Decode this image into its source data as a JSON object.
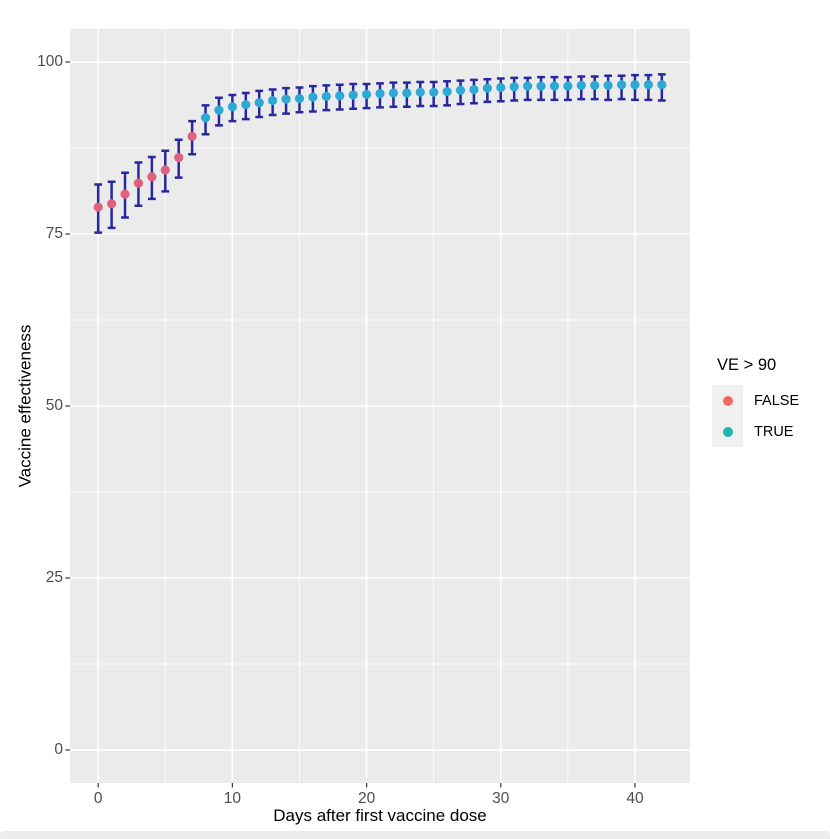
{
  "figure": {
    "background": "#FFFFFF",
    "panel_color": "#EBEBEB",
    "grid_color": "#FFFFFF",
    "tick_mark_color": "#333333",
    "tick_label_color": "#4D4D4D"
  },
  "legend": {
    "title": "VE > 90",
    "key_background": "#F0F0EF",
    "items": [
      {
        "label": "FALSE",
        "color": "#EE6A63"
      },
      {
        "label": "TRUE",
        "color": "#1CB8AE"
      }
    ]
  },
  "page": {
    "bottom_strip_color": "#ECECEA"
  },
  "chart_data": {
    "type": "scatter",
    "title": "",
    "xlabel": "Days after first vaccine dose",
    "ylabel": "Vaccine effectiveness",
    "x_ticks": [
      0,
      10,
      20,
      30,
      40
    ],
    "y_ticks": [
      0,
      25,
      50,
      75,
      100
    ],
    "xlim": [
      -2.1,
      44.1
    ],
    "ylim": [
      -4.8,
      104.8
    ],
    "grid": true,
    "legend_position": "right",
    "color_rule": "VE > 90 : FALSE=pink, TRUE=teal",
    "series_colors": {
      "FALSE": "#E0617E",
      "TRUE": "#2EA9D5"
    },
    "errorbar_color": "#28289E",
    "points": [
      {
        "day": 0,
        "ve": 78.9,
        "lo": 75.2,
        "hi": 82.2,
        "ve_gt_90": false
      },
      {
        "day": 1,
        "ve": 79.4,
        "lo": 75.9,
        "hi": 82.6,
        "ve_gt_90": false
      },
      {
        "day": 2,
        "ve": 80.8,
        "lo": 77.4,
        "hi": 83.9,
        "ve_gt_90": false
      },
      {
        "day": 3,
        "ve": 82.4,
        "lo": 79.1,
        "hi": 85.4,
        "ve_gt_90": false
      },
      {
        "day": 4,
        "ve": 83.3,
        "lo": 80.1,
        "hi": 86.2,
        "ve_gt_90": false
      },
      {
        "day": 5,
        "ve": 84.3,
        "lo": 81.2,
        "hi": 87.1,
        "ve_gt_90": false
      },
      {
        "day": 6,
        "ve": 86.1,
        "lo": 83.2,
        "hi": 88.7,
        "ve_gt_90": false
      },
      {
        "day": 7,
        "ve": 89.2,
        "lo": 86.6,
        "hi": 91.4,
        "ve_gt_90": false
      },
      {
        "day": 8,
        "ve": 91.9,
        "lo": 89.5,
        "hi": 93.7,
        "ve_gt_90": true
      },
      {
        "day": 9,
        "ve": 93.0,
        "lo": 90.8,
        "hi": 94.8,
        "ve_gt_90": true
      },
      {
        "day": 10,
        "ve": 93.5,
        "lo": 91.4,
        "hi": 95.2,
        "ve_gt_90": true
      },
      {
        "day": 11,
        "ve": 93.8,
        "lo": 91.7,
        "hi": 95.5,
        "ve_gt_90": true
      },
      {
        "day": 12,
        "ve": 94.1,
        "lo": 92.0,
        "hi": 95.8,
        "ve_gt_90": true
      },
      {
        "day": 13,
        "ve": 94.4,
        "lo": 92.3,
        "hi": 96.0,
        "ve_gt_90": true
      },
      {
        "day": 14,
        "ve": 94.6,
        "lo": 92.5,
        "hi": 96.2,
        "ve_gt_90": true
      },
      {
        "day": 15,
        "ve": 94.7,
        "lo": 92.7,
        "hi": 96.3,
        "ve_gt_90": true
      },
      {
        "day": 16,
        "ve": 94.9,
        "lo": 92.8,
        "hi": 96.5,
        "ve_gt_90": true
      },
      {
        "day": 17,
        "ve": 95.0,
        "lo": 93.0,
        "hi": 96.6,
        "ve_gt_90": true
      },
      {
        "day": 18,
        "ve": 95.1,
        "lo": 93.1,
        "hi": 96.7,
        "ve_gt_90": true
      },
      {
        "day": 19,
        "ve": 95.2,
        "lo": 93.2,
        "hi": 96.8,
        "ve_gt_90": true
      },
      {
        "day": 20,
        "ve": 95.3,
        "lo": 93.3,
        "hi": 96.8,
        "ve_gt_90": true
      },
      {
        "day": 21,
        "ve": 95.4,
        "lo": 93.4,
        "hi": 96.9,
        "ve_gt_90": true
      },
      {
        "day": 22,
        "ve": 95.5,
        "lo": 93.5,
        "hi": 97.0,
        "ve_gt_90": true
      },
      {
        "day": 23,
        "ve": 95.5,
        "lo": 93.5,
        "hi": 97.0,
        "ve_gt_90": true
      },
      {
        "day": 24,
        "ve": 95.6,
        "lo": 93.6,
        "hi": 97.1,
        "ve_gt_90": true
      },
      {
        "day": 25,
        "ve": 95.6,
        "lo": 93.6,
        "hi": 97.1,
        "ve_gt_90": true
      },
      {
        "day": 26,
        "ve": 95.7,
        "lo": 93.7,
        "hi": 97.2,
        "ve_gt_90": true
      },
      {
        "day": 27,
        "ve": 95.9,
        "lo": 93.9,
        "hi": 97.3,
        "ve_gt_90": true
      },
      {
        "day": 28,
        "ve": 96.0,
        "lo": 94.0,
        "hi": 97.4,
        "ve_gt_90": true
      },
      {
        "day": 29,
        "ve": 96.2,
        "lo": 94.2,
        "hi": 97.5,
        "ve_gt_90": true
      },
      {
        "day": 30,
        "ve": 96.3,
        "lo": 94.3,
        "hi": 97.6,
        "ve_gt_90": true
      },
      {
        "day": 31,
        "ve": 96.4,
        "lo": 94.4,
        "hi": 97.7,
        "ve_gt_90": true
      },
      {
        "day": 32,
        "ve": 96.5,
        "lo": 94.5,
        "hi": 97.7,
        "ve_gt_90": true
      },
      {
        "day": 33,
        "ve": 96.5,
        "lo": 94.5,
        "hi": 97.8,
        "ve_gt_90": true
      },
      {
        "day": 34,
        "ve": 96.5,
        "lo": 94.5,
        "hi": 97.8,
        "ve_gt_90": true
      },
      {
        "day": 35,
        "ve": 96.5,
        "lo": 94.5,
        "hi": 97.8,
        "ve_gt_90": true
      },
      {
        "day": 36,
        "ve": 96.6,
        "lo": 94.6,
        "hi": 97.9,
        "ve_gt_90": true
      },
      {
        "day": 37,
        "ve": 96.6,
        "lo": 94.6,
        "hi": 97.9,
        "ve_gt_90": true
      },
      {
        "day": 38,
        "ve": 96.6,
        "lo": 94.5,
        "hi": 98.0,
        "ve_gt_90": true
      },
      {
        "day": 39,
        "ve": 96.7,
        "lo": 94.6,
        "hi": 98.0,
        "ve_gt_90": true
      },
      {
        "day": 40,
        "ve": 96.7,
        "lo": 94.5,
        "hi": 98.1,
        "ve_gt_90": true
      },
      {
        "day": 41,
        "ve": 96.7,
        "lo": 94.5,
        "hi": 98.1,
        "ve_gt_90": true
      },
      {
        "day": 42,
        "ve": 96.7,
        "lo": 94.4,
        "hi": 98.2,
        "ve_gt_90": true
      }
    ]
  }
}
